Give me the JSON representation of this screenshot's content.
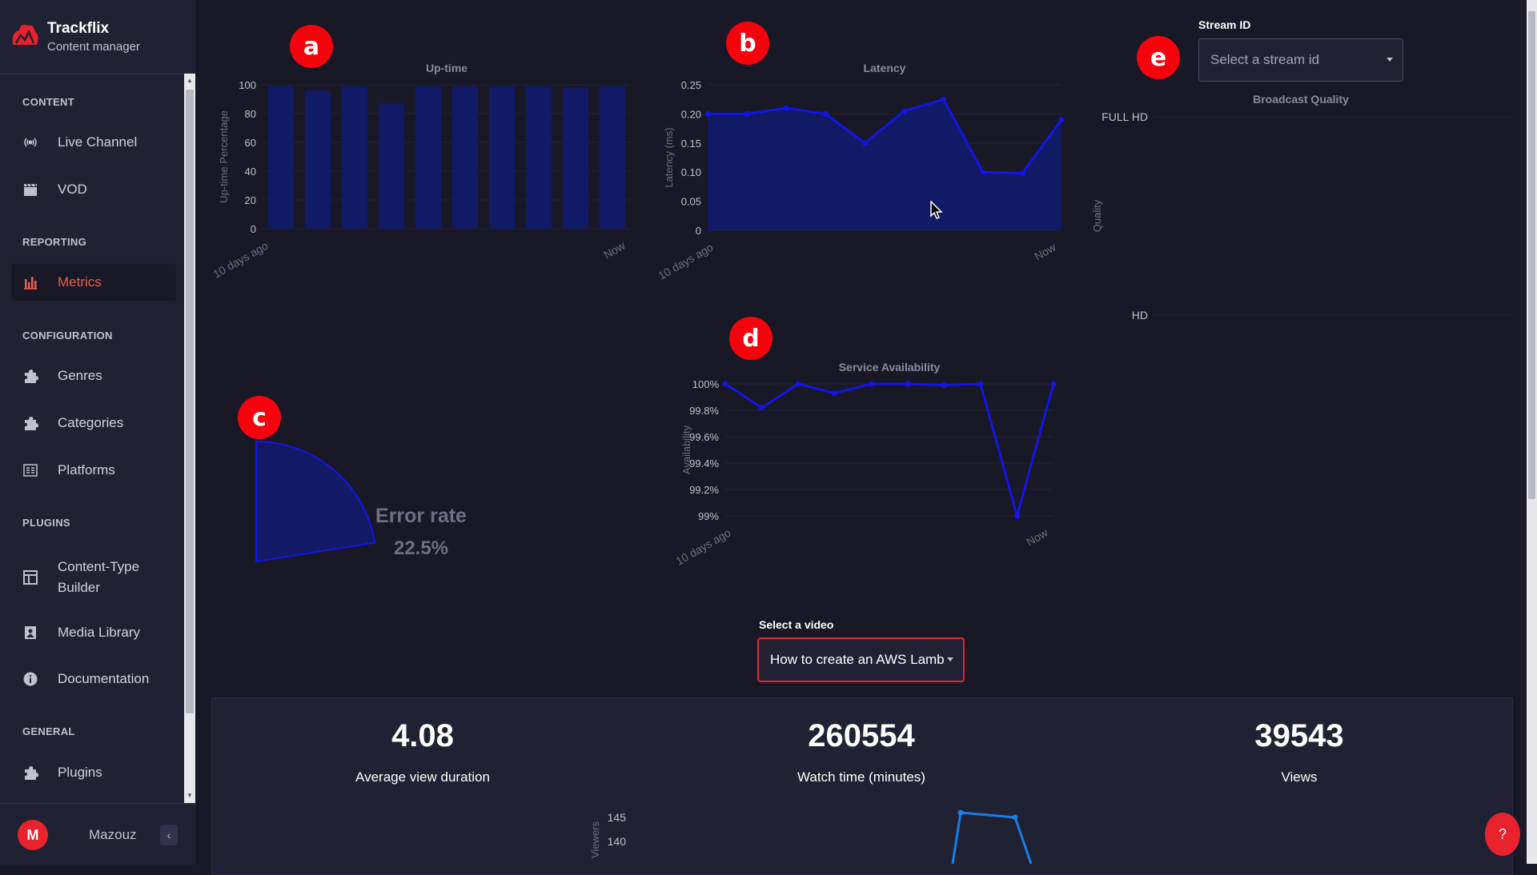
{
  "brand": {
    "name": "Trackflix",
    "subtitle": "Content manager"
  },
  "nav": {
    "sections": {
      "content": "CONTENT",
      "reporting": "REPORTING",
      "configuration": "CONFIGURATION",
      "plugins": "PLUGINS",
      "general": "GENERAL"
    },
    "items": {
      "live_channel": "Live Channel",
      "vod": "VOD",
      "metrics": "Metrics",
      "genres": "Genres",
      "categories": "Categories",
      "platforms": "Platforms",
      "content_type_builder": "Content-Type\nBuilder",
      "media_library": "Media Library",
      "documentation": "Documentation",
      "plugins": "Plugins"
    }
  },
  "user": {
    "initial": "M",
    "name": "Mazouz"
  },
  "markers": {
    "a": "a",
    "b": "b",
    "c": "c",
    "d": "d",
    "e": "e"
  },
  "stream": {
    "label": "Stream ID",
    "placeholder": "Select a stream id"
  },
  "video": {
    "label": "Select a video",
    "value": "How to create an AWS Lamb"
  },
  "stats": [
    {
      "value": "4.08",
      "label": "Average view duration"
    },
    {
      "value": "260554",
      "label": "Watch time (minutes)"
    },
    {
      "value": "39543",
      "label": "Views"
    }
  ],
  "help": {
    "label": "?"
  },
  "colors": {
    "accent": "#e8232d",
    "line": "#1414e6",
    "fill": "#121a66",
    "active_nav": "#ee5e52"
  },
  "chart_data": [
    {
      "id": "uptime",
      "type": "bar",
      "title": "Up-time",
      "ylabel": "Up-time Percentage",
      "ylim": [
        0,
        100
      ],
      "yticks": [
        "100",
        "80",
        "60",
        "40",
        "20",
        "0"
      ],
      "xticks": [
        "10 days ago",
        "Now"
      ],
      "values": [
        99,
        96,
        99,
        87,
        99,
        99,
        99,
        99,
        98,
        99
      ]
    },
    {
      "id": "latency",
      "type": "area",
      "title": "Latency",
      "ylabel": "Latency (ms)",
      "ylim": [
        0,
        0.25
      ],
      "yticks": [
        "0.25",
        "0.20",
        "0.15",
        "0.10",
        "0.05",
        "0"
      ],
      "xticks": [
        "10 days ago",
        "Now"
      ],
      "values": [
        0.2,
        0.2,
        0.21,
        0.2,
        0.15,
        0.205,
        0.225,
        0.1,
        0.098,
        0.19
      ]
    },
    {
      "id": "error_rate",
      "type": "pie",
      "title": "Error rate",
      "value_label": "22.5%",
      "value": 22.5
    },
    {
      "id": "availability",
      "type": "line",
      "title": "Service Availability",
      "ylabel": "Availability",
      "ylim": [
        99,
        100
      ],
      "yticks": [
        "100%",
        "99.8%",
        "99.6%",
        "99.4%",
        "99.2%",
        "99%"
      ],
      "xticks": [
        "10 days ago",
        "Now"
      ],
      "values": [
        100,
        99.82,
        100,
        99.93,
        100,
        100,
        99.99,
        100,
        99.0,
        100
      ]
    },
    {
      "id": "broadcast_quality",
      "type": "line",
      "title": "Broadcast Quality",
      "ylabel": "Quality",
      "yticks": [
        "FULL HD",
        "HD"
      ],
      "values": []
    },
    {
      "id": "viewers",
      "type": "line",
      "ylabel": "Viewers",
      "yticks": [
        "145",
        "140"
      ],
      "values": [
        146,
        145
      ]
    }
  ]
}
